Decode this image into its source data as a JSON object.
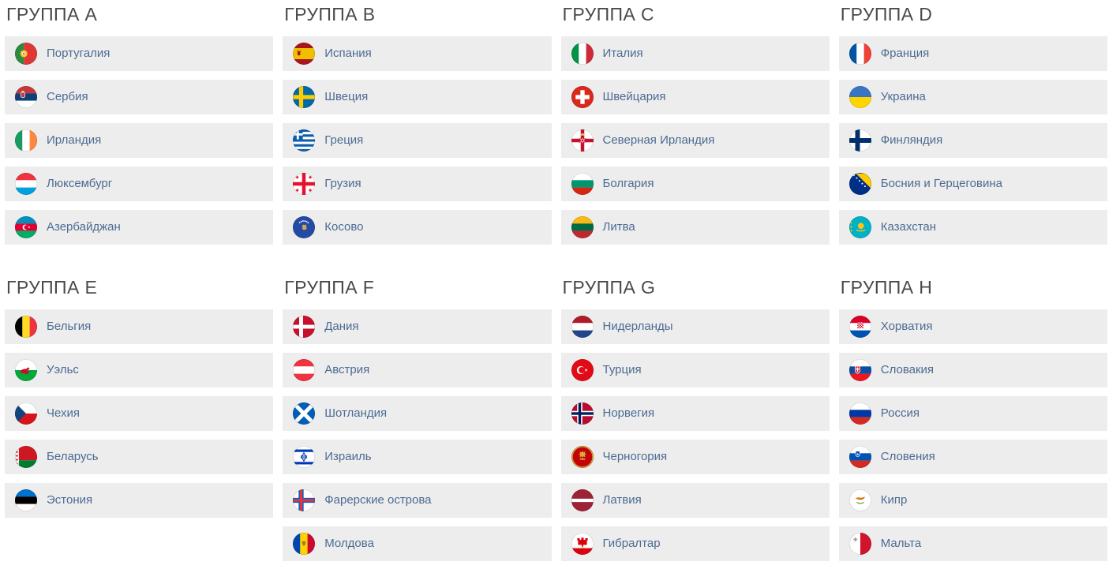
{
  "colors": {
    "page_background": "#ffffff",
    "row_background": "#ededed",
    "group_title_text": "#4a4a4a",
    "team_link_text": "#4c6b92"
  },
  "groups": [
    {
      "id": "A",
      "title": "ГРУППА A",
      "teams": [
        {
          "name": "Португалия",
          "flag": "portugal"
        },
        {
          "name": "Сербия",
          "flag": "serbia"
        },
        {
          "name": "Ирландия",
          "flag": "ireland"
        },
        {
          "name": "Люксембург",
          "flag": "luxembourg"
        },
        {
          "name": "Азербайджан",
          "flag": "azerbaijan"
        }
      ]
    },
    {
      "id": "B",
      "title": "ГРУППА B",
      "teams": [
        {
          "name": "Испания",
          "flag": "spain"
        },
        {
          "name": "Швеция",
          "flag": "sweden"
        },
        {
          "name": "Греция",
          "flag": "greece"
        },
        {
          "name": "Грузия",
          "flag": "georgia"
        },
        {
          "name": "Косово",
          "flag": "kosovo"
        }
      ]
    },
    {
      "id": "C",
      "title": "ГРУППА C",
      "teams": [
        {
          "name": "Италия",
          "flag": "italy"
        },
        {
          "name": "Швейцария",
          "flag": "switzerland"
        },
        {
          "name": "Северная Ирландия",
          "flag": "northern-ireland"
        },
        {
          "name": "Болгария",
          "flag": "bulgaria"
        },
        {
          "name": "Литва",
          "flag": "lithuania"
        }
      ]
    },
    {
      "id": "D",
      "title": "ГРУППА D",
      "teams": [
        {
          "name": "Франция",
          "flag": "france"
        },
        {
          "name": "Украина",
          "flag": "ukraine"
        },
        {
          "name": "Финляндия",
          "flag": "finland"
        },
        {
          "name": "Босния и Герцеговина",
          "flag": "bosnia"
        },
        {
          "name": "Казахстан",
          "flag": "kazakhstan"
        }
      ]
    },
    {
      "id": "E",
      "title": "ГРУППА E",
      "teams": [
        {
          "name": "Бельгия",
          "flag": "belgium"
        },
        {
          "name": "Уэльс",
          "flag": "wales"
        },
        {
          "name": "Чехия",
          "flag": "czech"
        },
        {
          "name": "Беларусь",
          "flag": "belarus"
        },
        {
          "name": "Эстония",
          "flag": "estonia"
        }
      ]
    },
    {
      "id": "F",
      "title": "ГРУППА F",
      "teams": [
        {
          "name": "Дания",
          "flag": "denmark"
        },
        {
          "name": "Австрия",
          "flag": "austria"
        },
        {
          "name": "Шотландия",
          "flag": "scotland"
        },
        {
          "name": "Израиль",
          "flag": "israel"
        },
        {
          "name": "Фарерские острова",
          "flag": "faroe"
        },
        {
          "name": "Молдова",
          "flag": "moldova"
        }
      ]
    },
    {
      "id": "G",
      "title": "ГРУППА G",
      "teams": [
        {
          "name": "Нидерланды",
          "flag": "netherlands"
        },
        {
          "name": "Турция",
          "flag": "turkey"
        },
        {
          "name": "Норвегия",
          "flag": "norway"
        },
        {
          "name": "Черногория",
          "flag": "montenegro"
        },
        {
          "name": "Латвия",
          "flag": "latvia"
        },
        {
          "name": "Гибралтар",
          "flag": "gibraltar"
        }
      ]
    },
    {
      "id": "H",
      "title": "ГРУППА H",
      "teams": [
        {
          "name": "Хорватия",
          "flag": "croatia"
        },
        {
          "name": "Словакия",
          "flag": "slovakia"
        },
        {
          "name": "Россия",
          "flag": "russia"
        },
        {
          "name": "Словения",
          "flag": "slovenia"
        },
        {
          "name": "Кипр",
          "flag": "cyprus"
        },
        {
          "name": "Мальта",
          "flag": "malta"
        }
      ]
    }
  ]
}
